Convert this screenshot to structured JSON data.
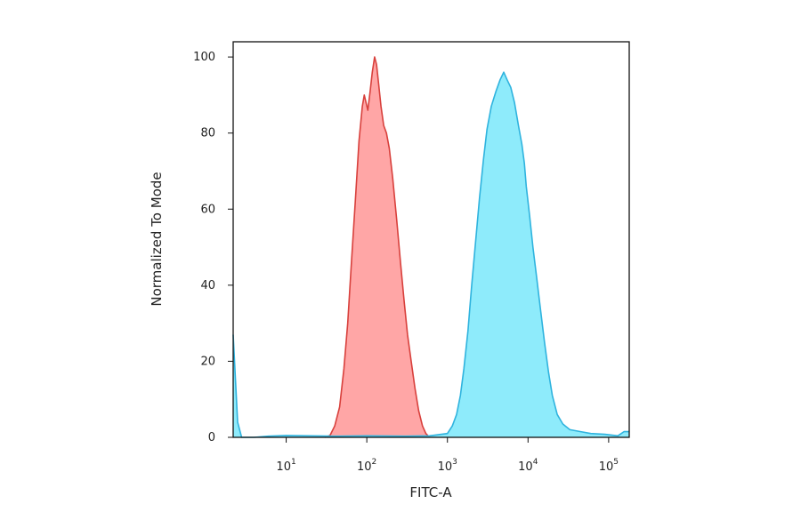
{
  "chart_data": {
    "type": "area",
    "title": "",
    "xlabel": "FITC-A",
    "ylabel": "Normalized To Mode",
    "xscale": "log",
    "xlim": [
      2.2,
      180000
    ],
    "ylim": [
      0,
      104
    ],
    "yticks": [
      0,
      20,
      40,
      60,
      80,
      100
    ],
    "xticks": [
      {
        "base": "10",
        "exp": "1",
        "value": 10
      },
      {
        "base": "10",
        "exp": "2",
        "value": 100
      },
      {
        "base": "10",
        "exp": "3",
        "value": 1000
      },
      {
        "base": "10",
        "exp": "4",
        "value": 10000
      },
      {
        "base": "10",
        "exp": "5",
        "value": 100000
      }
    ],
    "grid": false,
    "legend": "none",
    "series": [
      {
        "fill": "#ff9a9a",
        "stroke": "#d8403c",
        "points": [
          [
            30,
            0
          ],
          [
            35,
            0.5
          ],
          [
            40,
            3
          ],
          [
            46,
            8
          ],
          [
            52,
            18
          ],
          [
            58,
            30
          ],
          [
            64,
            45
          ],
          [
            72,
            62
          ],
          [
            80,
            78
          ],
          [
            88,
            87
          ],
          [
            93,
            90
          ],
          [
            98,
            88
          ],
          [
            103,
            86
          ],
          [
            110,
            91
          ],
          [
            117,
            96
          ],
          [
            125,
            100
          ],
          [
            132,
            98
          ],
          [
            140,
            93
          ],
          [
            150,
            87
          ],
          [
            162,
            82
          ],
          [
            175,
            80
          ],
          [
            190,
            76
          ],
          [
            210,
            68
          ],
          [
            235,
            57
          ],
          [
            262,
            46
          ],
          [
            290,
            36
          ],
          [
            320,
            27
          ],
          [
            355,
            20
          ],
          [
            395,
            13
          ],
          [
            440,
            7
          ],
          [
            490,
            3
          ],
          [
            540,
            1
          ],
          [
            600,
            0
          ]
        ]
      },
      {
        "fill": "#7ee8fa",
        "stroke": "#2fb3de",
        "points": [
          [
            2.2,
            27
          ],
          [
            2.35,
            15
          ],
          [
            2.5,
            4
          ],
          [
            2.8,
            0
          ],
          [
            4,
            0
          ],
          [
            6,
            0.3
          ],
          [
            10,
            0.5
          ],
          [
            20,
            0.4
          ],
          [
            40,
            0.3
          ],
          [
            100,
            0.4
          ],
          [
            300,
            0.3
          ],
          [
            600,
            0.4
          ],
          [
            1000,
            1
          ],
          [
            1150,
            3
          ],
          [
            1300,
            6
          ],
          [
            1450,
            11
          ],
          [
            1600,
            18
          ],
          [
            1800,
            28
          ],
          [
            2000,
            40
          ],
          [
            2250,
            52
          ],
          [
            2500,
            63
          ],
          [
            2800,
            73
          ],
          [
            3100,
            81
          ],
          [
            3500,
            87
          ],
          [
            4000,
            91
          ],
          [
            4500,
            94
          ],
          [
            5000,
            96
          ],
          [
            5500,
            94
          ],
          [
            6100,
            92
          ],
          [
            6800,
            88
          ],
          [
            7600,
            82
          ],
          [
            8400,
            77
          ],
          [
            9000,
            72
          ],
          [
            9500,
            66
          ],
          [
            10500,
            58
          ],
          [
            11500,
            50
          ],
          [
            12800,
            42
          ],
          [
            14200,
            34
          ],
          [
            16000,
            25
          ],
          [
            18000,
            17
          ],
          [
            20000,
            11
          ],
          [
            23000,
            6
          ],
          [
            27000,
            3.5
          ],
          [
            33000,
            2
          ],
          [
            45000,
            1.5
          ],
          [
            60000,
            1
          ],
          [
            90000,
            0.8
          ],
          [
            130000,
            0.4
          ],
          [
            155000,
            1.5
          ],
          [
            180000,
            1.5
          ]
        ]
      }
    ]
  }
}
